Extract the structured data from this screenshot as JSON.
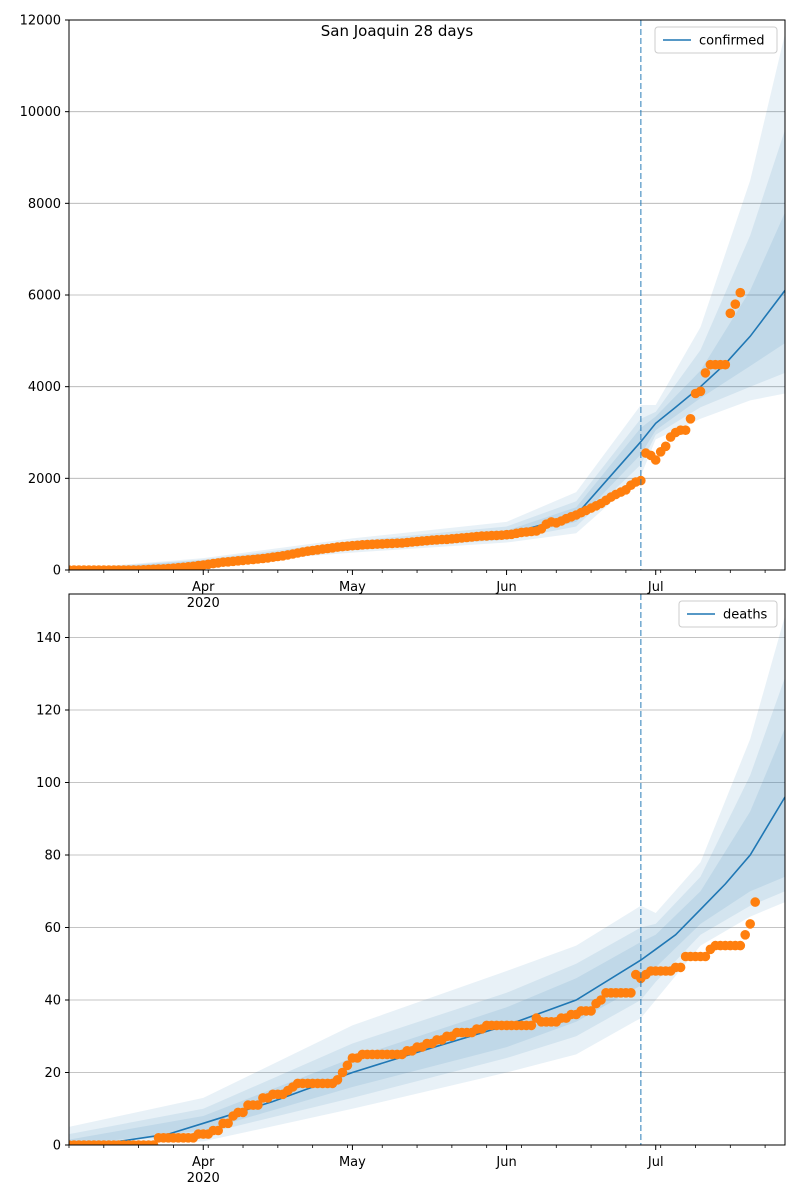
{
  "chart_data": [
    {
      "type": "line",
      "title": "San Joaquin 28 days",
      "xlabel": "",
      "ylabel": "",
      "ylim": [
        0,
        12000
      ],
      "yticks": [
        0,
        2000,
        4000,
        6000,
        8000,
        10000,
        12000
      ],
      "xlim": [
        "2020-03-05",
        "2020-07-27"
      ],
      "xtick_labels": [
        {
          "date": "2020-04-01",
          "label": "Apr",
          "sublabel": "2020"
        },
        {
          "date": "2020-05-01",
          "label": "May",
          "sublabel": ""
        },
        {
          "date": "2020-06-01",
          "label": "Jun",
          "sublabel": ""
        },
        {
          "date": "2020-07-01",
          "label": "Jul",
          "sublabel": ""
        }
      ],
      "grid": "y",
      "legend": {
        "placement": "top-right",
        "entries": [
          "confirmed"
        ]
      },
      "vline_date": "2020-06-28",
      "colors": {
        "model": "#1f77b4",
        "observed": "#ff7f0e",
        "band": "#1f77b4",
        "vline": "#1f77b4"
      },
      "model_series": {
        "name": "confirmed",
        "points": [
          [
            "2020-03-05",
            0
          ],
          [
            "2020-03-15",
            10
          ],
          [
            "2020-03-25",
            90
          ],
          [
            "2020-04-01",
            180
          ],
          [
            "2020-04-15",
            330
          ],
          [
            "2020-05-01",
            510
          ],
          [
            "2020-05-15",
            600
          ],
          [
            "2020-06-01",
            770
          ],
          [
            "2020-06-15",
            1200
          ],
          [
            "2020-06-28",
            2800
          ],
          [
            "2020-07-01",
            3200
          ],
          [
            "2020-07-05",
            3550
          ],
          [
            "2020-07-10",
            4000
          ],
          [
            "2020-07-15",
            4500
          ],
          [
            "2020-07-20",
            5100
          ],
          [
            "2020-07-27",
            6100
          ]
        ]
      },
      "bands": [
        {
          "points": [
            [
              "2020-03-05",
              -20,
              20
            ],
            [
              "2020-04-01",
              120,
              260
            ],
            [
              "2020-05-01",
              380,
              690
            ],
            [
              "2020-06-01",
              600,
              1050
            ],
            [
              "2020-06-15",
              800,
              1700
            ],
            [
              "2020-06-28",
              2050,
              3600
            ],
            [
              "2020-07-01",
              2850,
              3600
            ],
            [
              "2020-07-10",
              3300,
              5300
            ],
            [
              "2020-07-20",
              3700,
              8500
            ],
            [
              "2020-07-27",
              3850,
              11700
            ]
          ]
        },
        {
          "points": [
            [
              "2020-03-05",
              -10,
              10
            ],
            [
              "2020-04-01",
              140,
              230
            ],
            [
              "2020-05-01",
              430,
              630
            ],
            [
              "2020-06-01",
              660,
              950
            ],
            [
              "2020-06-15",
              950,
              1500
            ],
            [
              "2020-06-28",
              2300,
              3300
            ],
            [
              "2020-07-01",
              2950,
              3450
            ],
            [
              "2020-07-10",
              3550,
              4800
            ],
            [
              "2020-07-20",
              4000,
              7300
            ],
            [
              "2020-07-27",
              4300,
              9600
            ]
          ]
        },
        {
          "points": [
            [
              "2020-03-05",
              -5,
              5
            ],
            [
              "2020-04-01",
              155,
              210
            ],
            [
              "2020-05-01",
              465,
              575
            ],
            [
              "2020-06-01",
              705,
              860
            ],
            [
              "2020-06-15",
              1050,
              1370
            ],
            [
              "2020-06-28",
              2520,
              3100
            ],
            [
              "2020-07-01",
              3050,
              3350
            ],
            [
              "2020-07-10",
              3750,
              4350
            ],
            [
              "2020-07-20",
              4450,
              6100
            ],
            [
              "2020-07-27",
              4950,
              7800
            ]
          ]
        }
      ],
      "observed": {
        "dates_start": "2020-03-05",
        "values": [
          0,
          0,
          0,
          0,
          0,
          0,
          0,
          0,
          0,
          0,
          0,
          0,
          0,
          0,
          0,
          5,
          10,
          15,
          20,
          25,
          30,
          40,
          50,
          60,
          70,
          80,
          95,
          110,
          125,
          140,
          155,
          170,
          180,
          190,
          200,
          210,
          220,
          230,
          240,
          250,
          265,
          280,
          295,
          310,
          330,
          350,
          370,
          390,
          410,
          425,
          440,
          455,
          470,
          485,
          500,
          510,
          520,
          530,
          540,
          550,
          555,
          560,
          565,
          570,
          575,
          580,
          585,
          590,
          600,
          610,
          620,
          630,
          640,
          650,
          660,
          665,
          670,
          680,
          690,
          700,
          710,
          720,
          730,
          740,
          745,
          750,
          755,
          760,
          770,
          780,
          800,
          820,
          830,
          840,
          850,
          900,
          1000,
          1050,
          1030,
          1070,
          1120,
          1160,
          1200,
          1250,
          1300,
          1350,
          1400,
          1450,
          1520,
          1590,
          1650,
          1700,
          1750,
          1850,
          1920,
          1950,
          2550,
          2500,
          2400,
          2580,
          2700,
          2900,
          3000,
          3050,
          3050,
          3300,
          3850,
          3900,
          4300,
          4480,
          4480,
          4480,
          4480,
          5600,
          5800,
          6050
        ]
      }
    },
    {
      "type": "line",
      "title": "",
      "xlabel": "",
      "ylabel": "",
      "ylim": [
        0,
        152
      ],
      "yticks": [
        0,
        20,
        40,
        60,
        80,
        100,
        120,
        140
      ],
      "xlim": [
        "2020-03-05",
        "2020-07-27"
      ],
      "xtick_labels": [
        {
          "date": "2020-04-01",
          "label": "Apr",
          "sublabel": "2020"
        },
        {
          "date": "2020-05-01",
          "label": "May",
          "sublabel": ""
        },
        {
          "date": "2020-06-01",
          "label": "Jun",
          "sublabel": ""
        },
        {
          "date": "2020-07-01",
          "label": "Jul",
          "sublabel": ""
        }
      ],
      "grid": "y",
      "legend": {
        "placement": "top-right",
        "entries": [
          "deaths"
        ]
      },
      "vline_date": "2020-06-28",
      "colors": {
        "model": "#1f77b4",
        "observed": "#ff7f0e",
        "band": "#1f77b4",
        "vline": "#1f77b4"
      },
      "model_series": {
        "name": "deaths",
        "points": [
          [
            "2020-03-05",
            0
          ],
          [
            "2020-03-15",
            1
          ],
          [
            "2020-03-25",
            3
          ],
          [
            "2020-04-01",
            6
          ],
          [
            "2020-04-15",
            12
          ],
          [
            "2020-05-01",
            20
          ],
          [
            "2020-05-15",
            26
          ],
          [
            "2020-06-01",
            33
          ],
          [
            "2020-06-15",
            40
          ],
          [
            "2020-06-28",
            51
          ],
          [
            "2020-07-01",
            54
          ],
          [
            "2020-07-05",
            58
          ],
          [
            "2020-07-10",
            65
          ],
          [
            "2020-07-15",
            72
          ],
          [
            "2020-07-20",
            80
          ],
          [
            "2020-07-27",
            96
          ]
        ]
      },
      "bands": [
        {
          "points": [
            [
              "2020-03-05",
              0,
              5
            ],
            [
              "2020-04-01",
              1,
              13
            ],
            [
              "2020-05-01",
              10,
              33
            ],
            [
              "2020-06-01",
              20,
              48
            ],
            [
              "2020-06-15",
              25,
              55
            ],
            [
              "2020-06-28",
              35,
              66
            ],
            [
              "2020-07-01",
              40,
              64
            ],
            [
              "2020-07-10",
              55,
              78
            ],
            [
              "2020-07-20",
              63,
              112
            ],
            [
              "2020-07-27",
              67,
              146
            ]
          ]
        },
        {
          "points": [
            [
              "2020-03-05",
              0,
              3
            ],
            [
              "2020-04-01",
              3,
              10
            ],
            [
              "2020-05-01",
              13,
              28
            ],
            [
              "2020-06-01",
              24,
              42
            ],
            [
              "2020-06-15",
              30,
              50
            ],
            [
              "2020-06-28",
              40,
              60
            ],
            [
              "2020-07-01",
              45,
              61
            ],
            [
              "2020-07-10",
              58,
              74
            ],
            [
              "2020-07-20",
              66,
              102
            ],
            [
              "2020-07-27",
              70,
              129
            ]
          ]
        },
        {
          "points": [
            [
              "2020-03-05",
              0,
              1.5
            ],
            [
              "2020-04-01",
              4,
              8
            ],
            [
              "2020-05-01",
              16,
              24
            ],
            [
              "2020-06-01",
              27,
              38
            ],
            [
              "2020-06-15",
              34,
              46
            ],
            [
              "2020-06-28",
              44,
              56
            ],
            [
              "2020-07-01",
              49,
              58
            ],
            [
              "2020-07-10",
              61,
              70
            ],
            [
              "2020-07-20",
              70,
              92
            ],
            [
              "2020-07-27",
              74,
              115
            ]
          ]
        }
      ],
      "observed": {
        "dates_start": "2020-03-05",
        "values": [
          0,
          0,
          0,
          0,
          0,
          0,
          0,
          0,
          0,
          0,
          0,
          0,
          0,
          0,
          0,
          0,
          0,
          0,
          2,
          2,
          2,
          2,
          2,
          2,
          2,
          2,
          3,
          3,
          3,
          4,
          4,
          6,
          6,
          8,
          9,
          9,
          11,
          11,
          11,
          13,
          13,
          14,
          14,
          14,
          15,
          16,
          17,
          17,
          17,
          17,
          17,
          17,
          17,
          17,
          18,
          20,
          22,
          24,
          24,
          25,
          25,
          25,
          25,
          25,
          25,
          25,
          25,
          25,
          26,
          26,
          27,
          27,
          28,
          28,
          29,
          29,
          30,
          30,
          31,
          31,
          31,
          31,
          32,
          32,
          33,
          33,
          33,
          33,
          33,
          33,
          33,
          33,
          33,
          33,
          35,
          34,
          34,
          34,
          34,
          35,
          35,
          36,
          36,
          37,
          37,
          37,
          39,
          40,
          42,
          42,
          42,
          42,
          42,
          42,
          47,
          46,
          47,
          48,
          48,
          48,
          48,
          48,
          49,
          49,
          52,
          52,
          52,
          52,
          52,
          54,
          55,
          55,
          55,
          55,
          55,
          55,
          58,
          61,
          67
        ]
      }
    }
  ]
}
